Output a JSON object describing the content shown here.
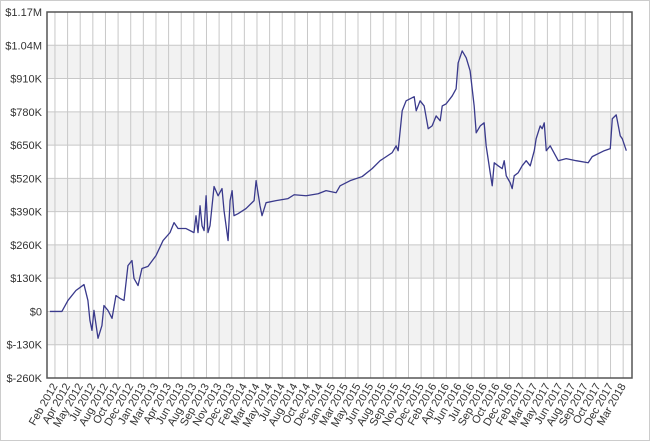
{
  "chart_data": {
    "type": "line",
    "xlim": [
      -0.63,
      45.7
    ],
    "xticks": [
      {
        "value": 0,
        "label": "Feb 2012"
      },
      {
        "value": 1,
        "label": "Apr 2012"
      },
      {
        "value": 2,
        "label": "May 2012"
      },
      {
        "value": 3,
        "label": "Jul 2012"
      },
      {
        "value": 4,
        "label": "Aug 2012"
      },
      {
        "value": 5,
        "label": "Oct 2012"
      },
      {
        "value": 6,
        "label": "Dec 2012"
      },
      {
        "value": 7,
        "label": "Jan 2013"
      },
      {
        "value": 8,
        "label": "Mar 2013"
      },
      {
        "value": 9,
        "label": "Apr 2013"
      },
      {
        "value": 10,
        "label": "Jun 2013"
      },
      {
        "value": 11,
        "label": "Aug 2013"
      },
      {
        "value": 12,
        "label": "Sep 2013"
      },
      {
        "value": 13,
        "label": "Nov 2013"
      },
      {
        "value": 14,
        "label": "Dec 2013"
      },
      {
        "value": 15,
        "label": "Feb 2014"
      },
      {
        "value": 16,
        "label": "Mar 2014"
      },
      {
        "value": 17,
        "label": "May 2014"
      },
      {
        "value": 18,
        "label": "Jul 2014"
      },
      {
        "value": 19,
        "label": "Aug 2014"
      },
      {
        "value": 20,
        "label": "Oct 2014"
      },
      {
        "value": 21,
        "label": "Dec 2014"
      },
      {
        "value": 22,
        "label": "Jan 2015"
      },
      {
        "value": 23,
        "label": "Mar 2015"
      },
      {
        "value": 24,
        "label": "May 2015"
      },
      {
        "value": 25,
        "label": "Jun 2015"
      },
      {
        "value": 26,
        "label": "Aug 2015"
      },
      {
        "value": 27,
        "label": "Sep 2015"
      },
      {
        "value": 28,
        "label": "Nov 2015"
      },
      {
        "value": 29,
        "label": "Dec 2015"
      },
      {
        "value": 30,
        "label": "Feb 2016"
      },
      {
        "value": 31,
        "label": "Apr 2016"
      },
      {
        "value": 32,
        "label": "Jun 2016"
      },
      {
        "value": 33,
        "label": "Jul 2016"
      },
      {
        "value": 34,
        "label": "Sep 2016"
      },
      {
        "value": 35,
        "label": "Oct 2016"
      },
      {
        "value": 36,
        "label": "Dec 2016"
      },
      {
        "value": 37,
        "label": "Feb 2017"
      },
      {
        "value": 38,
        "label": "Mar 2017"
      },
      {
        "value": 39,
        "label": "May 2017"
      },
      {
        "value": 40,
        "label": "Jun 2017"
      },
      {
        "value": 41,
        "label": "Aug 2017"
      },
      {
        "value": 42,
        "label": "Sep 2017"
      },
      {
        "value": 43,
        "label": "Oct 2017"
      },
      {
        "value": 44,
        "label": "Dec 2017"
      },
      {
        "value": 45,
        "label": "Mar 2018"
      }
    ],
    "ylim": [
      -260000,
      1170000
    ],
    "yticks": [
      {
        "value": -260000,
        "label": "$-260K"
      },
      {
        "value": -130000,
        "label": "$-130K"
      },
      {
        "value": 0,
        "label": "$0"
      },
      {
        "value": 130000,
        "label": "$130K"
      },
      {
        "value": 260000,
        "label": "$260K"
      },
      {
        "value": 390000,
        "label": "$390K"
      },
      {
        "value": 520000,
        "label": "$520K"
      },
      {
        "value": 650000,
        "label": "$650K"
      },
      {
        "value": 780000,
        "label": "$780K"
      },
      {
        "value": 910000,
        "label": "$910K"
      },
      {
        "value": 1040000,
        "label": "$1.04M"
      },
      {
        "value": 1170000,
        "label": "$1.17M"
      }
    ],
    "grid": true,
    "color": "#3a3a8c",
    "x": [
      -0.4,
      0.55,
      1.03,
      1.66,
      2.3,
      2.61,
      2.77,
      2.93,
      3.09,
      3.41,
      3.72,
      3.88,
      4.2,
      4.52,
      4.83,
      5.15,
      5.47,
      5.78,
      6.1,
      6.26,
      6.58,
      6.89,
      7.37,
      8.0,
      8.56,
      9.11,
      9.43,
      9.75,
      10.38,
      11.01,
      11.17,
      11.33,
      11.49,
      11.65,
      11.81,
      11.97,
      12.12,
      12.28,
      12.6,
      12.92,
      13.23,
      13.39,
      13.71,
      13.87,
      14.03,
      14.18,
      14.5,
      15.13,
      15.77,
      15.93,
      16.24,
      16.4,
      16.72,
      17.51,
      18.46,
      18.94,
      19.89,
      20.84,
      21.47,
      22.27,
      22.58,
      23.38,
      24.33,
      25.12,
      25.75,
      26.7,
      27.02,
      27.18,
      27.5,
      27.81,
      28.45,
      28.61,
      28.92,
      29.24,
      29.56,
      29.87,
      30.19,
      30.51,
      30.67,
      30.98,
      31.46,
      31.77,
      31.93,
      32.25,
      32.57,
      32.88,
      33.2,
      33.36,
      33.68,
      33.99,
      34.15,
      34.47,
      34.63,
      34.79,
      35.1,
      35.42,
      35.58,
      35.74,
      36.05,
      36.21,
      36.37,
      36.69,
      37.0,
      37.32,
      37.64,
      37.96,
      38.11,
      38.43,
      38.59,
      38.75,
      38.91,
      39.22,
      39.86,
      40.49,
      41.28,
      42.23,
      42.55,
      43.5,
      43.98,
      44.14,
      44.45,
      44.77,
      44.93,
      45.25
    ],
    "values": [
      0,
      0,
      43000,
      82000,
      105000,
      43000,
      -35000,
      -74000,
      4000,
      -105000,
      -55000,
      23000,
      4000,
      -27000,
      62000,
      51000,
      43000,
      179000,
      199000,
      129000,
      101000,
      168000,
      176000,
      218000,
      277000,
      308000,
      347000,
      324000,
      324000,
      308000,
      374000,
      308000,
      413000,
      335000,
      316000,
      452000,
      308000,
      335000,
      488000,
      452000,
      480000,
      394000,
      277000,
      433000,
      472000,
      374000,
      382000,
      402000,
      433000,
      511000,
      413000,
      374000,
      425000,
      433000,
      441000,
      456000,
      452000,
      460000,
      472000,
      464000,
      491000,
      511000,
      527000,
      558000,
      589000,
      620000,
      647000,
      628000,
      784000,
      823000,
      839000,
      784000,
      823000,
      803000,
      714000,
      725000,
      764000,
      745000,
      803000,
      811000,
      842000,
      870000,
      971000,
      1018000,
      991000,
      940000,
      803000,
      698000,
      725000,
      737000,
      647000,
      542000,
      491000,
      581000,
      569000,
      558000,
      589000,
      530000,
      503000,
      480000,
      530000,
      542000,
      569000,
      589000,
      569000,
      628000,
      675000,
      725000,
      714000,
      737000,
      628000,
      647000,
      589000,
      597000,
      589000,
      581000,
      605000,
      628000,
      636000,
      753000,
      768000,
      686000,
      675000,
      628000
    ]
  }
}
